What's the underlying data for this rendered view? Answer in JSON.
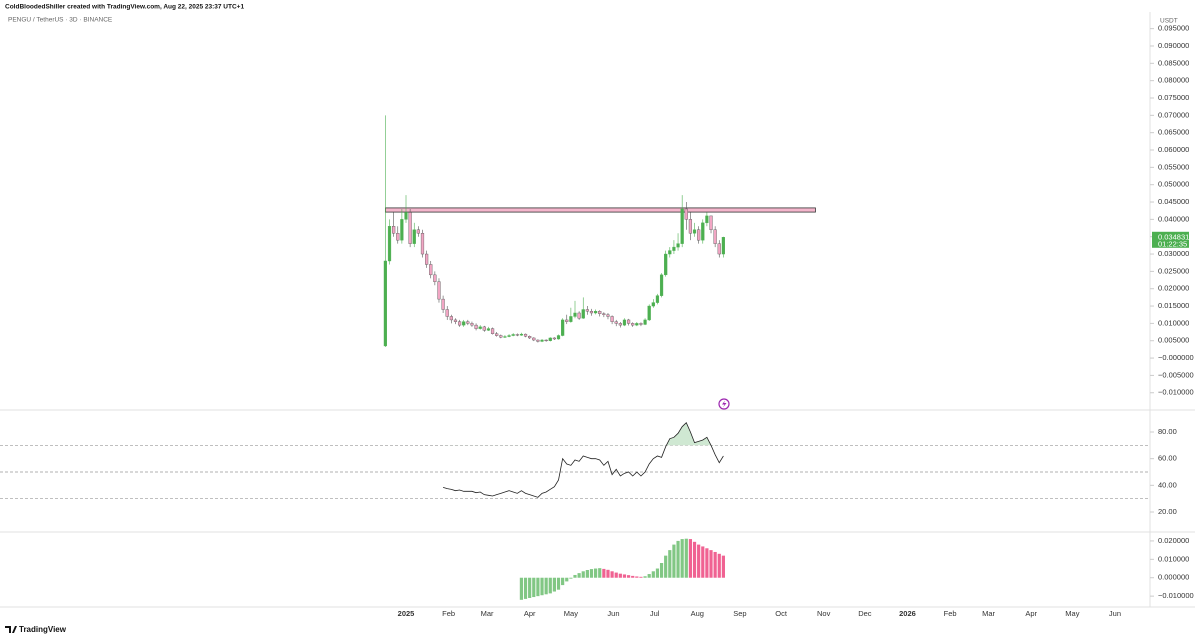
{
  "header": "ColdBloodedShiller created with TradingView.com, Aug 22, 2025 23:37 UTC+1",
  "footer": "TradingView",
  "chart_data": [
    {
      "type": "candlestick",
      "title": "PENGU / TetherUS · 3D · BINANCE",
      "y_axis_label": "USDT",
      "up_color": "#4caf50",
      "down_color": "#f2a6c4",
      "wick_color": "#555555",
      "x": [
        -15,
        -12,
        -9,
        -6,
        -3,
        0,
        3,
        6,
        9,
        12,
        15,
        18,
        21,
        24,
        27,
        30,
        33,
        36,
        39,
        42,
        45,
        48,
        51,
        54,
        57,
        60,
        63,
        66,
        69,
        72,
        75,
        78,
        81,
        84,
        87,
        90,
        93,
        96,
        99,
        102,
        105,
        108,
        111,
        114,
        117,
        120,
        123,
        126,
        129,
        132,
        135,
        138,
        141,
        144,
        147,
        150,
        153,
        156,
        159,
        162,
        165,
        168,
        171,
        174,
        177,
        180,
        183,
        186,
        189,
        192,
        195,
        198,
        201,
        204,
        207,
        210,
        213,
        216,
        219,
        222,
        225,
        228,
        231
      ],
      "open": [
        0.0035,
        0.028,
        0.038,
        0.036,
        0.034,
        0.04,
        0.042,
        0.033,
        0.037,
        0.036,
        0.03,
        0.027,
        0.024,
        0.022,
        0.017,
        0.014,
        0.012,
        0.011,
        0.0105,
        0.0095,
        0.0105,
        0.01,
        0.0095,
        0.0085,
        0.009,
        0.008,
        0.0085,
        0.007,
        0.0065,
        0.006,
        0.0062,
        0.0065,
        0.0068,
        0.0066,
        0.0069,
        0.0063,
        0.0058,
        0.0052,
        0.0048,
        0.0052,
        0.005,
        0.0058,
        0.0055,
        0.0065,
        0.011,
        0.0105,
        0.012,
        0.013,
        0.0115,
        0.014,
        0.0135,
        0.013,
        0.0135,
        0.0128,
        0.0125,
        0.012,
        0.0105,
        0.01,
        0.0095,
        0.011,
        0.01,
        0.0095,
        0.01,
        0.0097,
        0.011,
        0.015,
        0.016,
        0.018,
        0.024,
        0.03,
        0.031,
        0.032,
        0.033,
        0.043,
        0.04,
        0.036,
        0.037,
        0.034,
        0.039,
        0.041,
        0.037,
        0.033,
        0.03
      ],
      "high": [
        0.07,
        0.04,
        0.042,
        0.038,
        0.043,
        0.047,
        0.043,
        0.039,
        0.038,
        0.037,
        0.031,
        0.028,
        0.025,
        0.023,
        0.018,
        0.015,
        0.0125,
        0.0115,
        0.011,
        0.011,
        0.011,
        0.0105,
        0.01,
        0.0095,
        0.0093,
        0.009,
        0.0088,
        0.0075,
        0.0068,
        0.0066,
        0.0069,
        0.0072,
        0.0071,
        0.0073,
        0.0071,
        0.0065,
        0.006,
        0.0054,
        0.0055,
        0.0054,
        0.006,
        0.006,
        0.0068,
        0.0115,
        0.0125,
        0.0145,
        0.0165,
        0.0135,
        0.0175,
        0.015,
        0.0142,
        0.014,
        0.0138,
        0.0132,
        0.013,
        0.0123,
        0.011,
        0.0104,
        0.0115,
        0.0113,
        0.0103,
        0.0104,
        0.0103,
        0.0115,
        0.0155,
        0.017,
        0.0185,
        0.0245,
        0.031,
        0.032,
        0.034,
        0.036,
        0.047,
        0.045,
        0.042,
        0.039,
        0.038,
        0.04,
        0.042,
        0.041,
        0.038,
        0.034,
        0.035
      ],
      "low": [
        0.0032,
        0.027,
        0.035,
        0.033,
        0.033,
        0.039,
        0.032,
        0.032,
        0.035,
        0.029,
        0.026,
        0.023,
        0.021,
        0.016,
        0.013,
        0.011,
        0.01,
        0.0098,
        0.009,
        0.009,
        0.0095,
        0.009,
        0.008,
        0.0082,
        0.0076,
        0.0078,
        0.0068,
        0.0062,
        0.0057,
        0.0058,
        0.006,
        0.0063,
        0.0063,
        0.0064,
        0.006,
        0.0055,
        0.0049,
        0.0045,
        0.0046,
        0.0047,
        0.0048,
        0.0052,
        0.0053,
        0.0063,
        0.0098,
        0.0102,
        0.0115,
        0.011,
        0.0113,
        0.0125,
        0.0122,
        0.0126,
        0.012,
        0.0118,
        0.0112,
        0.0098,
        0.0092,
        0.0088,
        0.0092,
        0.0094,
        0.009,
        0.0092,
        0.0092,
        0.0095,
        0.0107,
        0.0145,
        0.0155,
        0.0175,
        0.0235,
        0.029,
        0.03,
        0.031,
        0.032,
        0.037,
        0.034,
        0.035,
        0.033,
        0.033,
        0.038,
        0.036,
        0.032,
        0.029,
        0.029
      ],
      "close": [
        0.028,
        0.038,
        0.036,
        0.034,
        0.04,
        0.042,
        0.033,
        0.037,
        0.036,
        0.03,
        0.027,
        0.024,
        0.022,
        0.017,
        0.014,
        0.012,
        0.011,
        0.0105,
        0.0095,
        0.0105,
        0.01,
        0.0095,
        0.0085,
        0.009,
        0.008,
        0.0085,
        0.007,
        0.0065,
        0.006,
        0.0062,
        0.0065,
        0.0068,
        0.0066,
        0.0069,
        0.0063,
        0.0058,
        0.0052,
        0.0048,
        0.0052,
        0.005,
        0.0058,
        0.0055,
        0.0065,
        0.011,
        0.0105,
        0.012,
        0.013,
        0.0115,
        0.014,
        0.0135,
        0.013,
        0.0135,
        0.0128,
        0.0125,
        0.012,
        0.0105,
        0.01,
        0.0095,
        0.011,
        0.01,
        0.0095,
        0.01,
        0.0097,
        0.011,
        0.015,
        0.016,
        0.018,
        0.024,
        0.03,
        0.031,
        0.032,
        0.033,
        0.043,
        0.04,
        0.036,
        0.037,
        0.034,
        0.039,
        0.041,
        0.037,
        0.033,
        0.03,
        0.034831
      ],
      "zone": {
        "x": [
          -15,
          298
        ],
        "y": [
          0.0421,
          0.0433
        ],
        "color": "#f4b6cc"
      },
      "last_price": {
        "value": 0.034831,
        "label": "0.034831"
      },
      "countdown": "01:22:35",
      "xlim": [
        -295.5,
        541.5
      ],
      "xticks": [
        {
          "value": 0,
          "label": "2025"
        },
        {
          "value": 31,
          "label": "Feb"
        },
        {
          "value": 59,
          "label": "Mar"
        },
        {
          "value": 90,
          "label": "Apr"
        },
        {
          "value": 120,
          "label": "May"
        },
        {
          "value": 151,
          "label": "Jun"
        },
        {
          "value": 181,
          "label": "Jul"
        },
        {
          "value": 212,
          "label": "Aug"
        },
        {
          "value": 243,
          "label": "Sep"
        },
        {
          "value": 273,
          "label": "Oct"
        },
        {
          "value": 304,
          "label": "Nov"
        },
        {
          "value": 334,
          "label": "Dec"
        },
        {
          "value": 365,
          "label": "2026"
        },
        {
          "value": 396,
          "label": "Feb"
        },
        {
          "value": 424,
          "label": "Mar"
        },
        {
          "value": 455,
          "label": "Apr"
        },
        {
          "value": 485,
          "label": "May"
        },
        {
          "value": 516,
          "label": "Jun"
        }
      ],
      "ylim": [
        -0.0144,
        0.0998
      ],
      "yticks": [
        {
          "value": 0.095,
          "label": "0.095000"
        },
        {
          "value": 0.09,
          "label": "0.090000"
        },
        {
          "value": 0.085,
          "label": "0.085000"
        },
        {
          "value": 0.08,
          "label": "0.080000"
        },
        {
          "value": 0.075,
          "label": "0.075000"
        },
        {
          "value": 0.07,
          "label": "0.070000"
        },
        {
          "value": 0.065,
          "label": "0.065000"
        },
        {
          "value": 0.06,
          "label": "0.060000"
        },
        {
          "value": 0.055,
          "label": "0.055000"
        },
        {
          "value": 0.05,
          "label": "0.050000"
        },
        {
          "value": 0.045,
          "label": "0.045000"
        },
        {
          "value": 0.04,
          "label": "0.040000"
        },
        {
          "value": 0.035,
          "label": "0.035000"
        },
        {
          "value": 0.03,
          "label": "0.030000"
        },
        {
          "value": 0.025,
          "label": "0.025000"
        },
        {
          "value": 0.02,
          "label": "0.020000"
        },
        {
          "value": 0.015,
          "label": "0.015000"
        },
        {
          "value": 0.01,
          "label": "0.010000"
        },
        {
          "value": 0.005,
          "label": "0.005000"
        },
        {
          "value": 0,
          "label": "−0.000000"
        },
        {
          "value": -0.005,
          "label": "−0.005000"
        },
        {
          "value": -0.01,
          "label": "−0.010000"
        }
      ]
    },
    {
      "type": "line",
      "color": "#222222",
      "fill_color": "#cfe8d2",
      "x": [
        27,
        30,
        33,
        36,
        39,
        42,
        45,
        48,
        51,
        54,
        57,
        60,
        63,
        66,
        69,
        72,
        75,
        78,
        81,
        84,
        87,
        90,
        93,
        96,
        99,
        102,
        105,
        108,
        111,
        114,
        117,
        120,
        123,
        126,
        129,
        132,
        135,
        138,
        141,
        144,
        147,
        150,
        153,
        156,
        159,
        162,
        165,
        168,
        171,
        174,
        177,
        180,
        183,
        186,
        189,
        192,
        195,
        198,
        201,
        204,
        207,
        210,
        213,
        216,
        219,
        222,
        225,
        228,
        231
      ],
      "values": [
        38.5,
        37.5,
        37,
        36,
        36.5,
        35.5,
        35.5,
        35.5,
        34.5,
        35,
        33,
        32.5,
        32,
        33,
        34,
        35,
        36,
        35,
        34,
        36,
        34,
        33,
        32,
        31,
        34,
        35,
        37,
        39,
        44,
        60,
        56,
        55,
        59,
        58,
        62,
        61,
        60,
        60,
        59,
        55,
        58,
        48,
        52,
        47,
        49,
        50,
        47,
        50,
        47,
        50,
        56,
        60,
        62,
        61,
        69,
        75,
        76,
        79,
        84,
        87,
        80,
        72,
        73,
        74,
        76,
        70,
        63,
        57,
        62
      ],
      "levels": [
        70,
        50,
        30
      ],
      "level_color": "#999999",
      "ylim": [
        5,
        96.5
      ],
      "yticks": [
        {
          "value": 80,
          "label": "80.00"
        },
        {
          "value": 60,
          "label": "60.00"
        },
        {
          "value": 40,
          "label": "40.00"
        },
        {
          "value": 20,
          "label": "20.00"
        }
      ]
    },
    {
      "type": "histogram",
      "rising_color": "#81c784",
      "falling_color": "#f06292",
      "x": [
        84,
        87,
        90,
        93,
        96,
        99,
        102,
        105,
        108,
        111,
        114,
        117,
        120,
        123,
        126,
        129,
        132,
        135,
        138,
        141,
        144,
        147,
        150,
        153,
        156,
        159,
        162,
        165,
        168,
        171,
        174,
        177,
        180,
        183,
        186,
        189,
        192,
        195,
        198,
        201,
        204,
        207,
        210,
        213,
        216,
        219,
        222,
        225,
        228,
        231
      ],
      "values": [
        -0.012,
        -0.0115,
        -0.011,
        -0.0105,
        -0.01,
        -0.0095,
        -0.009,
        -0.0085,
        -0.0075,
        -0.0065,
        -0.004,
        -0.002,
        -0.0005,
        0.0015,
        0.0025,
        0.0035,
        0.0042,
        0.0047,
        0.005,
        0.0052,
        0.0048,
        0.0043,
        0.0035,
        0.0028,
        0.0022,
        0.0018,
        0.0014,
        0.001,
        0.0007,
        0.0005,
        0.0008,
        0.002,
        0.0035,
        0.005,
        0.008,
        0.012,
        0.015,
        0.018,
        0.02,
        0.021,
        0.0212,
        0.021,
        0.0195,
        0.018,
        0.017,
        0.016,
        0.015,
        0.014,
        0.013,
        0.012
      ],
      "ylim": [
        -0.0159,
        0.0243
      ],
      "yticks": [
        {
          "value": 0.02,
          "label": "0.020000"
        },
        {
          "value": 0.01,
          "label": "0.010000"
        },
        {
          "value": 0,
          "label": "0.000000"
        },
        {
          "value": -0.01,
          "label": "−0.010000"
        }
      ]
    }
  ]
}
